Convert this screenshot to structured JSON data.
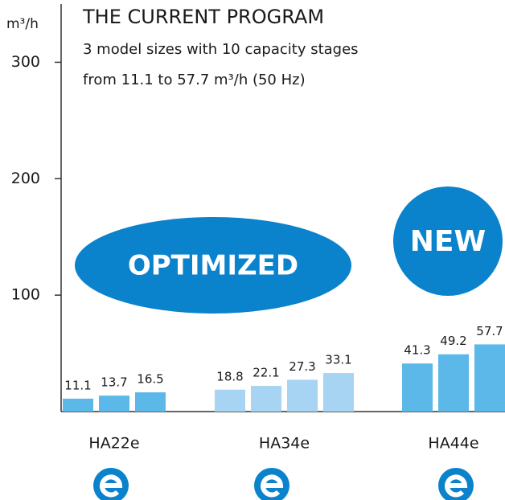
{
  "chart_data": {
    "type": "grouped-bar",
    "title": "THE CURRENT PROGRAM",
    "subtitle": [
      "3 model sizes with 10 capacity stages",
      "from 11.1 to 57.7 m³/h (50 Hz)"
    ],
    "y_label": "m³/h",
    "ylim": [
      0,
      350
    ],
    "yticks": [
      100,
      200,
      300
    ],
    "groups": [
      {
        "name": "HA22e",
        "color": "#5bb8e8",
        "values": [
          11.1,
          13.7,
          16.5
        ]
      },
      {
        "name": "HA34e",
        "color": "#a6d4f2",
        "values": [
          18.8,
          22.1,
          27.3,
          33.1
        ]
      },
      {
        "name": "HA44e",
        "color": "#5bb8e8",
        "values": [
          41.3,
          49.2,
          57.7
        ]
      }
    ],
    "annotations": [
      "OPTIMIZED",
      "NEW"
    ]
  }
}
